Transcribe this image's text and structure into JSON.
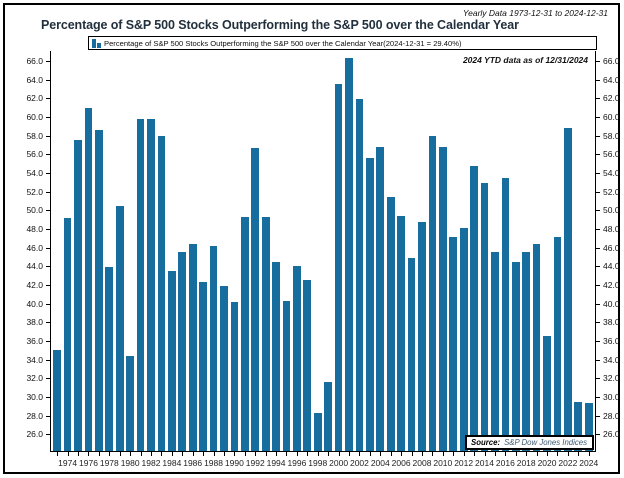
{
  "header": {
    "range_note": "Yearly Data 1973-12-31 to 2024-12-31",
    "title": "Percentage of S&P 500 Stocks Outperforming the S&P 500 over the Calendar Year"
  },
  "legend": {
    "label": "Percentage of S&P 500 Stocks Outperforming the S&P 500 over the Calendar Year(2024-12-31 = 29.40%)"
  },
  "annotation": "2024 YTD data as of 12/31/2024",
  "source": {
    "prefix": "Source:",
    "text": "S&P Dow Jones Indices"
  },
  "colors": {
    "bar": "#176d9e",
    "axis": "#000000",
    "title_text": "#22303e"
  },
  "chart_data": {
    "type": "bar",
    "title": "Percentage of S&P 500 Stocks Outperforming the S&P 500 over the Calendar Year",
    "xlabel": "",
    "ylabel": "",
    "x": [
      1973,
      1974,
      1975,
      1976,
      1977,
      1978,
      1979,
      1980,
      1981,
      1982,
      1983,
      1984,
      1985,
      1986,
      1987,
      1988,
      1989,
      1990,
      1991,
      1992,
      1993,
      1994,
      1995,
      1996,
      1997,
      1998,
      1999,
      2000,
      2001,
      2002,
      2003,
      2004,
      2005,
      2006,
      2007,
      2008,
      2009,
      2010,
      2011,
      2012,
      2013,
      2014,
      2015,
      2016,
      2017,
      2018,
      2019,
      2020,
      2021,
      2022,
      2023,
      2024
    ],
    "values": [
      35.1,
      49.3,
      57.7,
      61.1,
      58.7,
      44.0,
      50.6,
      34.5,
      59.9,
      59.9,
      58.1,
      43.6,
      45.6,
      46.5,
      42.4,
      46.3,
      42.0,
      40.3,
      49.4,
      56.8,
      49.4,
      44.6,
      40.4,
      44.1,
      42.6,
      28.4,
      31.7,
      63.7,
      66.4,
      62.1,
      55.7,
      56.9,
      51.5,
      49.5,
      45.0,
      48.9,
      58.1,
      56.9,
      47.2,
      48.2,
      54.9,
      53.0,
      45.6,
      53.6,
      44.6,
      45.6,
      46.5,
      36.6,
      47.2,
      58.9,
      29.6,
      29.4
    ],
    "ylim": [
      24.3,
      67.2
    ],
    "yticks": [
      26.0,
      28.0,
      30.0,
      32.0,
      34.0,
      36.0,
      38.0,
      40.0,
      42.0,
      44.0,
      46.0,
      48.0,
      50.0,
      52.0,
      54.0,
      56.0,
      58.0,
      60.0,
      62.0,
      64.0,
      66.0
    ],
    "xtick_label_years": [
      1974,
      1976,
      1978,
      1980,
      1982,
      1984,
      1986,
      1988,
      1990,
      1992,
      1994,
      1996,
      1998,
      2000,
      2002,
      2004,
      2006,
      2008,
      2010,
      2012,
      2014,
      2016,
      2018,
      2020,
      2022,
      2024
    ],
    "grid": false,
    "legend_position": "top-inside-box",
    "y_axis_sides": "both"
  }
}
